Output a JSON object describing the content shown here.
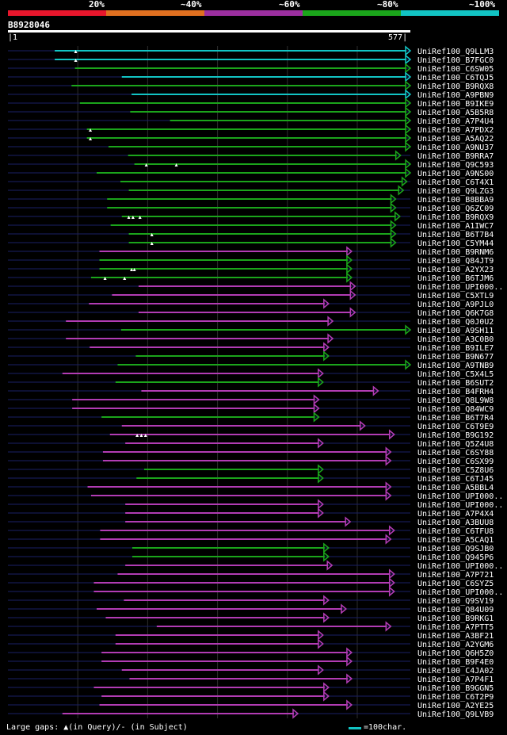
{
  "legend": [
    {
      "label": "20%",
      "color": "#e8162c"
    },
    {
      "label": "~40%",
      "color": "#e07020"
    },
    {
      "label": "~60%",
      "color": "#9c2fa0"
    },
    {
      "label": "~80%",
      "color": "#1ba51b"
    },
    {
      "label": "~100%",
      "color": "#12c4c4"
    }
  ],
  "query": {
    "id": "B8928046",
    "start": "1",
    "end": "577",
    "length": 577
  },
  "colors": {
    "cyan": "#12c4c4",
    "green": "#1ba51b",
    "magenta": "#b23cb4",
    "dim": "#1a1f66",
    "grid": "#2e2e2e"
  },
  "hits": [
    {
      "name": "UniRef100_Q9LLM3",
      "start": 68,
      "end": 577,
      "color": "cyan",
      "gaps": [
        98
      ]
    },
    {
      "name": "UniRef100_B7FGC0",
      "start": 68,
      "end": 577,
      "color": "cyan",
      "gaps": [
        98
      ]
    },
    {
      "name": "UniRef100_C6SW05",
      "start": 97,
      "end": 577,
      "color": "green",
      "gaps": []
    },
    {
      "name": "UniRef100_C6TQJ5",
      "start": 164,
      "end": 577,
      "color": "cyan",
      "gaps": []
    },
    {
      "name": "UniRef100_B9RQX8",
      "start": 92,
      "end": 577,
      "color": "green",
      "gaps": []
    },
    {
      "name": "UniRef100_A9PBN9",
      "start": 178,
      "end": 577,
      "color": "cyan",
      "gaps": []
    },
    {
      "name": "UniRef100_B9IKE9",
      "start": 104,
      "end": 577,
      "color": "green",
      "gaps": []
    },
    {
      "name": "UniRef100_A5B5R8",
      "start": 176,
      "end": 577,
      "color": "green",
      "gaps": []
    },
    {
      "name": "UniRef100_A7P4U4",
      "start": 233,
      "end": 577,
      "color": "green",
      "gaps": []
    },
    {
      "name": "UniRef100_A7PDX2",
      "start": 114,
      "end": 577,
      "color": "green",
      "gaps": [
        119
      ]
    },
    {
      "name": "UniRef100_A5AQ22",
      "start": 114,
      "end": 577,
      "color": "green",
      "gaps": [
        119
      ]
    },
    {
      "name": "UniRef100_A9NU37",
      "start": 145,
      "end": 577,
      "color": "green",
      "gaps": []
    },
    {
      "name": "UniRef100_B9RRA7",
      "start": 173,
      "end": 563,
      "color": "green",
      "gaps": []
    },
    {
      "name": "UniRef100_Q9C593",
      "start": 182,
      "end": 577,
      "color": "green",
      "gaps": [
        199,
        242
      ]
    },
    {
      "name": "UniRef100_A9NS00",
      "start": 128,
      "end": 577,
      "color": "green",
      "gaps": []
    },
    {
      "name": "UniRef100_C6T4X1",
      "start": 162,
      "end": 572,
      "color": "green",
      "gaps": []
    },
    {
      "name": "UniRef100_Q9LZG3",
      "start": 174,
      "end": 567,
      "color": "green",
      "gaps": []
    },
    {
      "name": "UniRef100_B8BBA9",
      "start": 143,
      "end": 556,
      "color": "green",
      "gaps": []
    },
    {
      "name": "UniRef100_Q6ZC09",
      "start": 143,
      "end": 556,
      "color": "green",
      "gaps": []
    },
    {
      "name": "UniRef100_B9RQX9",
      "start": 164,
      "end": 562,
      "color": "green",
      "gaps": [
        174,
        180,
        190
      ]
    },
    {
      "name": "UniRef100_A1IWC7",
      "start": 148,
      "end": 556,
      "color": "green",
      "gaps": []
    },
    {
      "name": "UniRef100_B6T7B4",
      "start": 174,
      "end": 556,
      "color": "green",
      "gaps": [
        207
      ]
    },
    {
      "name": "UniRef100_C5YM44",
      "start": 174,
      "end": 556,
      "color": "green",
      "gaps": [
        207
      ]
    },
    {
      "name": "UniRef100_B9RNM6",
      "start": 132,
      "end": 493,
      "color": "magenta",
      "gaps": []
    },
    {
      "name": "UniRef100_Q84JT9",
      "start": 132,
      "end": 493,
      "color": "green",
      "gaps": []
    },
    {
      "name": "UniRef100_A2YX23",
      "start": 132,
      "end": 493,
      "color": "green",
      "gaps": [
        178,
        182
      ]
    },
    {
      "name": "UniRef100_B6TJM6",
      "start": 120,
      "end": 493,
      "color": "green",
      "gaps": [
        140,
        168
      ]
    },
    {
      "name": "UniRef100_UPI000..",
      "start": 188,
      "end": 498,
      "color": "magenta",
      "gaps": []
    },
    {
      "name": "UniRef100_C5XTL9",
      "start": 150,
      "end": 498,
      "color": "magenta",
      "gaps": []
    },
    {
      "name": "UniRef100_A9PJL0",
      "start": 117,
      "end": 460,
      "color": "magenta",
      "gaps": []
    },
    {
      "name": "UniRef100_Q6K7G8",
      "start": 188,
      "end": 498,
      "color": "magenta",
      "gaps": []
    },
    {
      "name": "UniRef100_Q0J0U2",
      "start": 84,
      "end": 466,
      "color": "magenta",
      "gaps": []
    },
    {
      "name": "UniRef100_A9SH11",
      "start": 163,
      "end": 577,
      "color": "green",
      "gaps": []
    },
    {
      "name": "UniRef100_A3C0B0",
      "start": 84,
      "end": 466,
      "color": "magenta",
      "gaps": []
    },
    {
      "name": "UniRef100_B9ILE7",
      "start": 118,
      "end": 460,
      "color": "magenta",
      "gaps": []
    },
    {
      "name": "UniRef100_B9N677",
      "start": 184,
      "end": 460,
      "color": "green",
      "gaps": []
    },
    {
      "name": "UniRef100_A9TNB9",
      "start": 158,
      "end": 577,
      "color": "green",
      "gaps": []
    },
    {
      "name": "UniRef100_C5X4L5",
      "start": 79,
      "end": 452,
      "color": "magenta",
      "gaps": []
    },
    {
      "name": "UniRef100_B6SUT2",
      "start": 155,
      "end": 452,
      "color": "green",
      "gaps": []
    },
    {
      "name": "UniRef100_B4FRH4",
      "start": 192,
      "end": 531,
      "color": "magenta",
      "gaps": []
    },
    {
      "name": "UniRef100_Q8L9W8",
      "start": 93,
      "end": 446,
      "color": "magenta",
      "gaps": []
    },
    {
      "name": "UniRef100_Q84WC9",
      "start": 93,
      "end": 446,
      "color": "magenta",
      "gaps": []
    },
    {
      "name": "UniRef100_B6T7R4",
      "start": 135,
      "end": 446,
      "color": "green",
      "gaps": []
    },
    {
      "name": "UniRef100_C6T9E9",
      "start": 164,
      "end": 512,
      "color": "magenta",
      "gaps": []
    },
    {
      "name": "UniRef100_B9G192",
      "start": 147,
      "end": 554,
      "color": "magenta",
      "gaps": [
        186,
        192,
        198
      ]
    },
    {
      "name": "UniRef100_Q5Z4U8",
      "start": 169,
      "end": 452,
      "color": "magenta",
      "gaps": []
    },
    {
      "name": "UniRef100_C6SY88",
      "start": 137,
      "end": 549,
      "color": "magenta",
      "gaps": []
    },
    {
      "name": "UniRef100_C6SX99",
      "start": 137,
      "end": 549,
      "color": "magenta",
      "gaps": []
    },
    {
      "name": "UniRef100_C5Z8U6",
      "start": 196,
      "end": 452,
      "color": "green",
      "gaps": []
    },
    {
      "name": "UniRef100_C6TJ45",
      "start": 185,
      "end": 452,
      "color": "green",
      "gaps": []
    },
    {
      "name": "UniRef100_A5BBL4",
      "start": 115,
      "end": 549,
      "color": "magenta",
      "gaps": []
    },
    {
      "name": "UniRef100_UPI000..",
      "start": 120,
      "end": 549,
      "color": "magenta",
      "gaps": []
    },
    {
      "name": "UniRef100_UPI000..",
      "start": 169,
      "end": 452,
      "color": "magenta",
      "gaps": []
    },
    {
      "name": "UniRef100_A7P4X4",
      "start": 169,
      "end": 452,
      "color": "magenta",
      "gaps": []
    },
    {
      "name": "UniRef100_A3BUU8",
      "start": 169,
      "end": 491,
      "color": "magenta",
      "gaps": []
    },
    {
      "name": "UniRef100_C6TFU8",
      "start": 133,
      "end": 554,
      "color": "magenta",
      "gaps": []
    },
    {
      "name": "UniRef100_A5CAQ1",
      "start": 133,
      "end": 549,
      "color": "magenta",
      "gaps": []
    },
    {
      "name": "UniRef100_Q9SJB0",
      "start": 179,
      "end": 460,
      "color": "green",
      "gaps": []
    },
    {
      "name": "UniRef100_Q945P6",
      "start": 179,
      "end": 460,
      "color": "green",
      "gaps": []
    },
    {
      "name": "UniRef100_UPI000..",
      "start": 169,
      "end": 465,
      "color": "magenta",
      "gaps": []
    },
    {
      "name": "UniRef100_A7P721",
      "start": 158,
      "end": 554,
      "color": "magenta",
      "gaps": []
    },
    {
      "name": "UniRef100_C6SYZ5",
      "start": 124,
      "end": 554,
      "color": "magenta",
      "gaps": []
    },
    {
      "name": "UniRef100_UPI000..",
      "start": 124,
      "end": 554,
      "color": "magenta",
      "gaps": []
    },
    {
      "name": "UniRef100_Q9SV19",
      "start": 167,
      "end": 460,
      "color": "magenta",
      "gaps": []
    },
    {
      "name": "UniRef100_Q84U09",
      "start": 128,
      "end": 485,
      "color": "magenta",
      "gaps": []
    },
    {
      "name": "UniRef100_B9RKG1",
      "start": 141,
      "end": 460,
      "color": "magenta",
      "gaps": []
    },
    {
      "name": "UniRef100_A7PTT5",
      "start": 214,
      "end": 549,
      "color": "magenta",
      "gaps": []
    },
    {
      "name": "UniRef100_A3BF21",
      "start": 155,
      "end": 452,
      "color": "magenta",
      "gaps": []
    },
    {
      "name": "UniRef100_A2YGM6",
      "start": 155,
      "end": 452,
      "color": "magenta",
      "gaps": []
    },
    {
      "name": "UniRef100_Q6H5Z0",
      "start": 135,
      "end": 493,
      "color": "magenta",
      "gaps": []
    },
    {
      "name": "UniRef100_B9F4E0",
      "start": 135,
      "end": 493,
      "color": "magenta",
      "gaps": []
    },
    {
      "name": "UniRef100_C4JA02",
      "start": 164,
      "end": 452,
      "color": "magenta",
      "gaps": []
    },
    {
      "name": "UniRef100_A7P4F1",
      "start": 175,
      "end": 493,
      "color": "magenta",
      "gaps": []
    },
    {
      "name": "UniRef100_B9GGN5",
      "start": 124,
      "end": 460,
      "color": "magenta",
      "gaps": []
    },
    {
      "name": "UniRef100_C6T2P9",
      "start": 135,
      "end": 460,
      "color": "magenta",
      "gaps": []
    },
    {
      "name": "UniRef100_A2YE25",
      "start": 132,
      "end": 493,
      "color": "magenta",
      "gaps": []
    },
    {
      "name": "UniRef100_Q9LVB9",
      "start": 79,
      "end": 416,
      "color": "magenta",
      "gaps": []
    }
  ],
  "footer": {
    "gaps_text": "Large gaps: ▲(in Query)/- (in Subject)",
    "scale_text": "=100char."
  }
}
